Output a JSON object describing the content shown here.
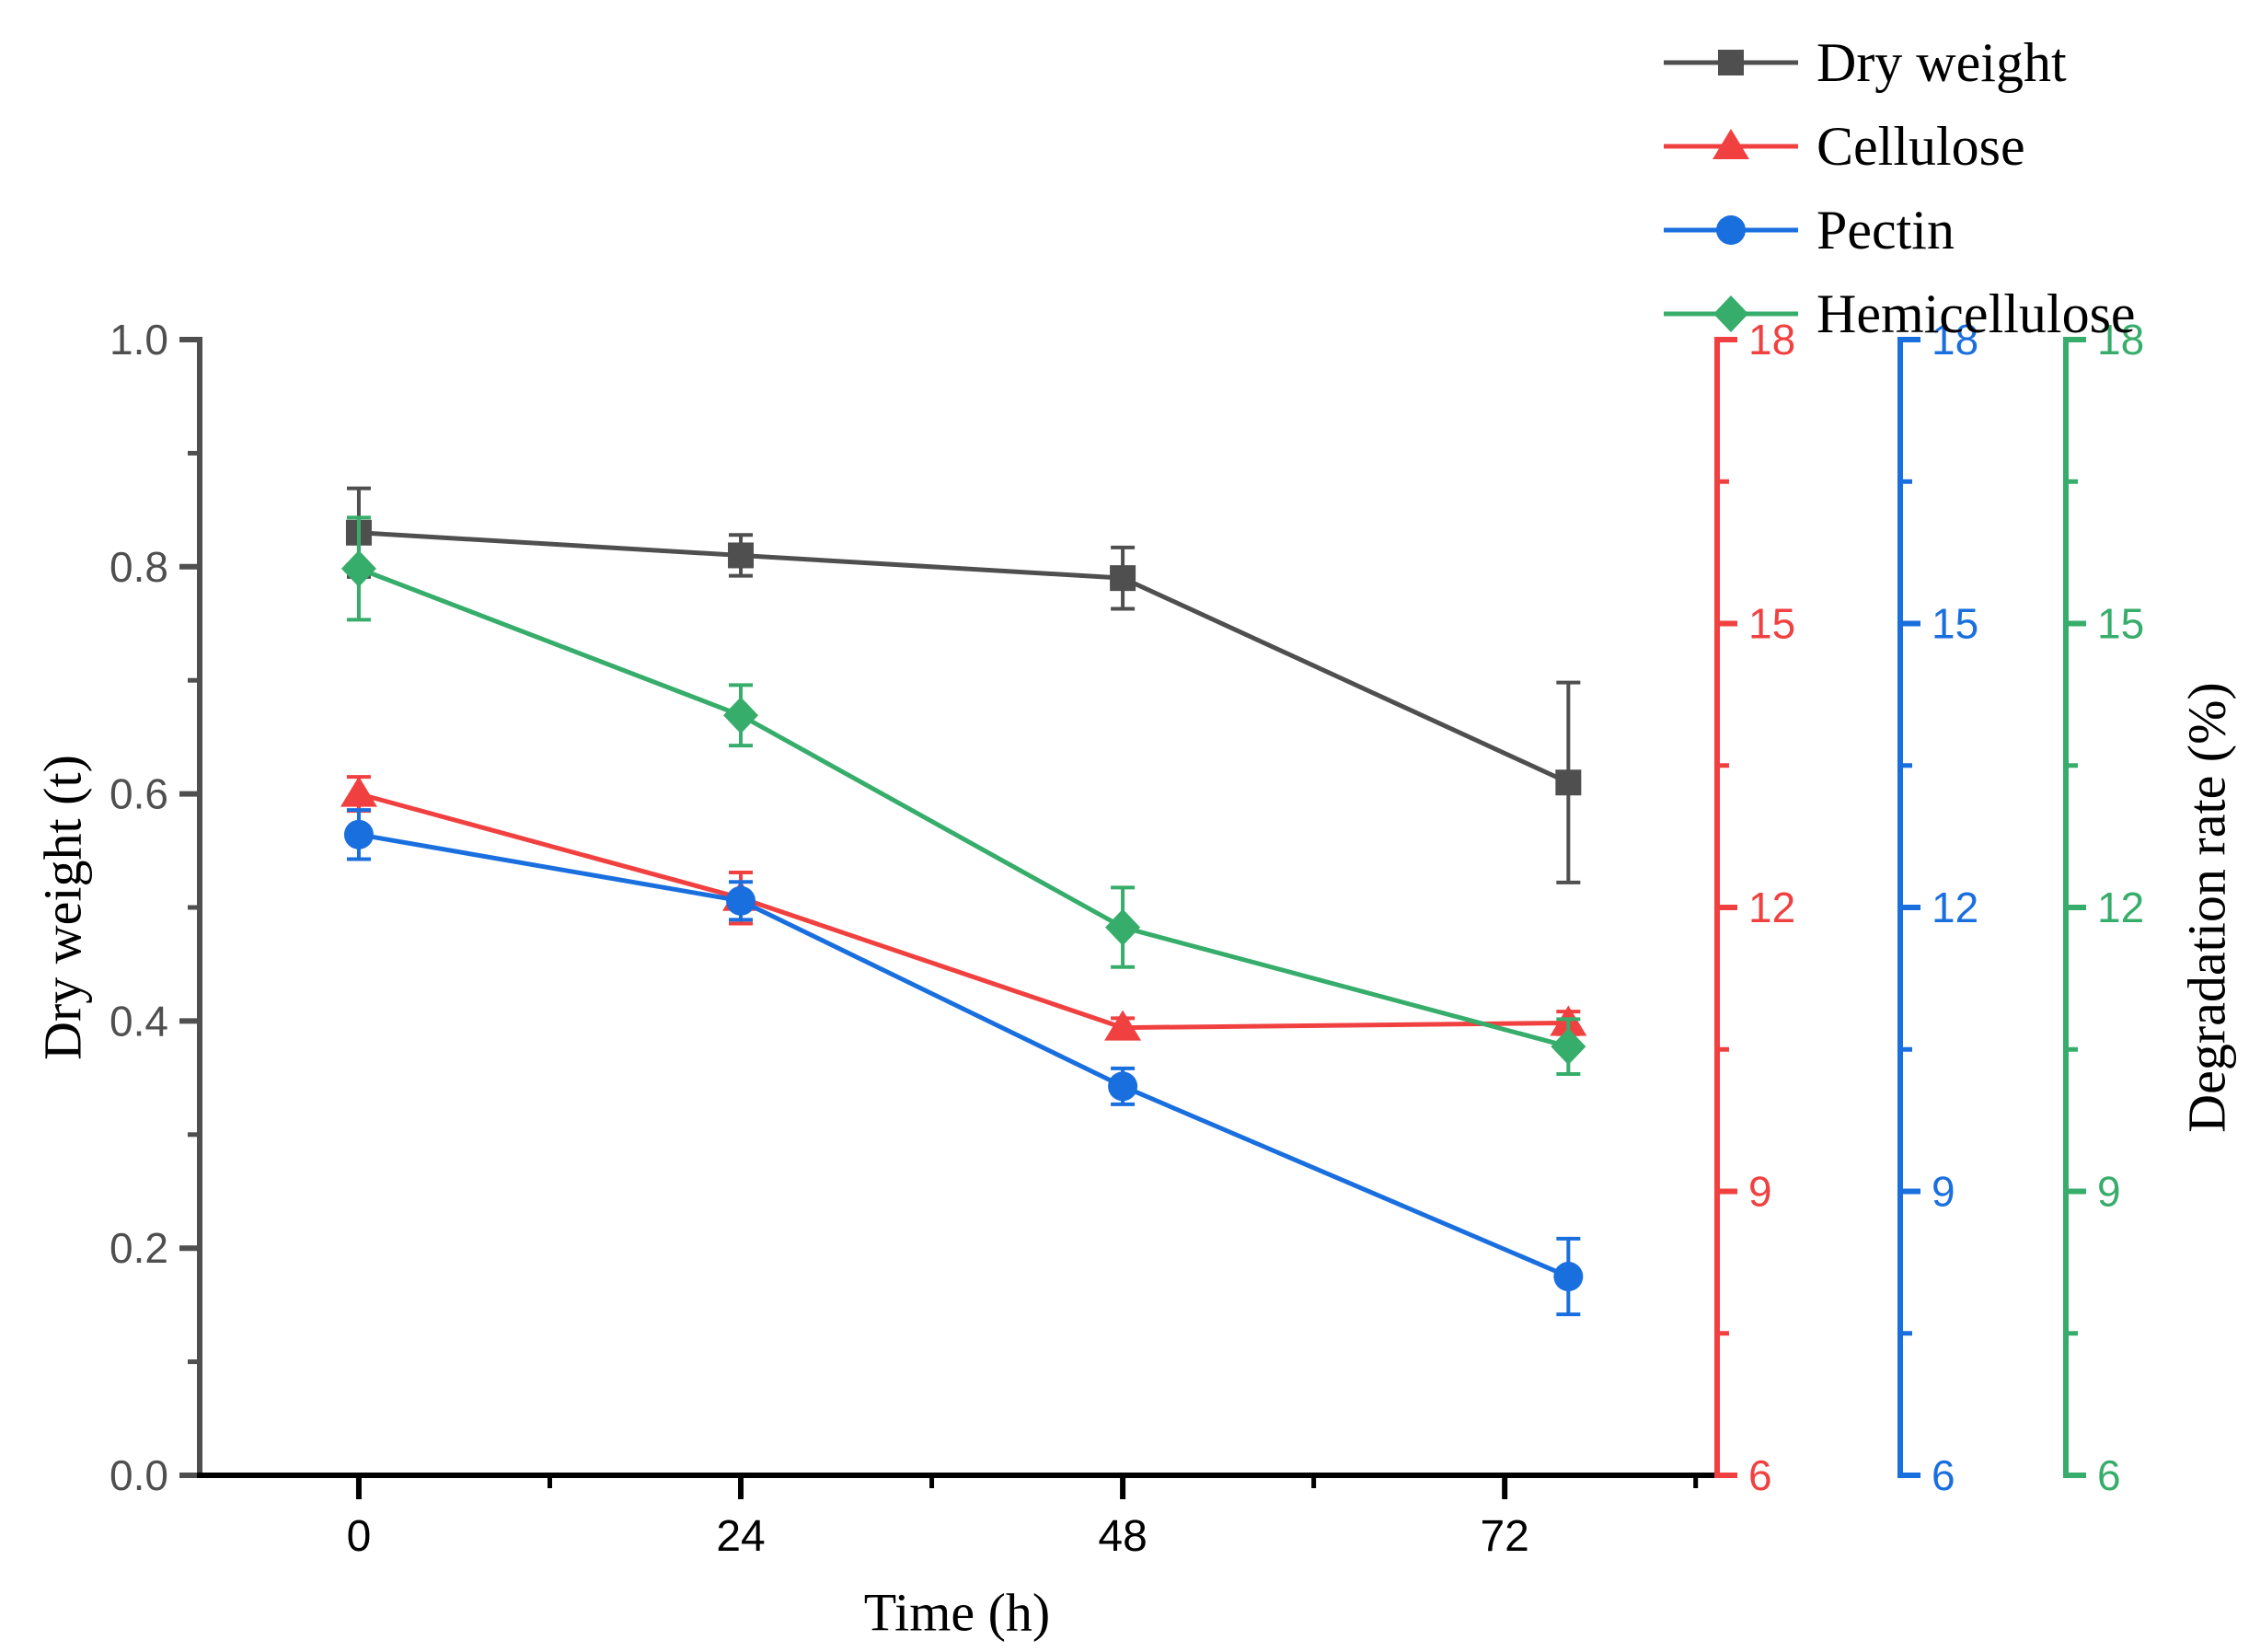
{
  "figure": {
    "background": "#ffffff"
  },
  "chart_data": {
    "type": "line",
    "title": "",
    "x_axis": {
      "label": "Time (h)",
      "range": [
        -10,
        85
      ],
      "major_ticks": [
        0,
        24,
        48,
        72
      ],
      "minor_ticks": [
        12,
        36,
        60,
        84
      ],
      "color": "#000000"
    },
    "left_axis": {
      "label": "Dry weight (t)",
      "range": [
        0,
        1
      ],
      "major_ticks": [
        "0.0",
        "0.2",
        "0.4",
        "0.6",
        "0.8",
        "1.0"
      ],
      "minor_ticks": [
        0.1,
        0.3,
        0.5,
        0.7,
        0.9
      ],
      "color": "#4f4f4f"
    },
    "right_axis_label": "Degradation rate (%)",
    "right_axes": [
      {
        "id": "cellulose-axis",
        "color": "#f14040",
        "range": [
          6,
          18
        ],
        "major_ticks": [
          6,
          9,
          12,
          15,
          18
        ],
        "minor_ticks": [
          7.5,
          10.5,
          13.5,
          16.5
        ]
      },
      {
        "id": "pectin-axis",
        "color": "#1a6fdf",
        "range": [
          6,
          18
        ],
        "major_ticks": [
          6,
          9,
          12,
          15,
          18
        ],
        "minor_ticks": [
          7.5,
          10.5,
          13.5,
          16.5
        ]
      },
      {
        "id": "hemicellulose-axis",
        "color": "#37ad6b",
        "range": [
          6,
          18
        ],
        "major_ticks": [
          6,
          9,
          12,
          15,
          18
        ],
        "minor_ticks": [
          7.5,
          10.5,
          13.5,
          16.5
        ]
      }
    ],
    "series": [
      {
        "name": "Dry weight",
        "axis": "left",
        "color": "#4f4f4f",
        "marker": "square",
        "x": [
          0,
          24,
          48,
          76
        ],
        "y": [
          0.83,
          0.81,
          0.79,
          0.61
        ],
        "yerr": [
          0.039,
          0.018,
          0.027,
          0.088
        ]
      },
      {
        "name": "Cellulose",
        "axis": "right",
        "color": "#f14040",
        "marker": "triangle",
        "x": [
          0,
          24,
          48,
          76
        ],
        "y": [
          13.2,
          12.1,
          10.73,
          10.78
        ],
        "yerr": [
          0.18,
          0.27,
          0.1,
          0.12
        ]
      },
      {
        "name": "Pectin",
        "axis": "right",
        "color": "#1a6fdf",
        "marker": "circle",
        "x": [
          0,
          24,
          48,
          76
        ],
        "y": [
          12.77,
          12.07,
          10.11,
          8.1
        ],
        "yerr": [
          0.26,
          0.2,
          0.19,
          0.4
        ]
      },
      {
        "name": "Hemicellulose",
        "axis": "right",
        "color": "#37ad6b",
        "marker": "diamond",
        "x": [
          0,
          24,
          48,
          76
        ],
        "y": [
          15.58,
          14.03,
          11.79,
          10.53
        ],
        "yerr": [
          0.54,
          0.32,
          0.42,
          0.29
        ]
      }
    ],
    "legend": {
      "position": "top-right",
      "entries": [
        {
          "label": "Dry weight",
          "marker": "square",
          "color": "#4f4f4f"
        },
        {
          "label": "Cellulose",
          "marker": "triangle",
          "color": "#f14040"
        },
        {
          "label": "Pectin",
          "marker": "circle",
          "color": "#1a6fdf"
        },
        {
          "label": "Hemicellulose",
          "marker": "diamond",
          "color": "#37ad6b"
        }
      ]
    }
  }
}
